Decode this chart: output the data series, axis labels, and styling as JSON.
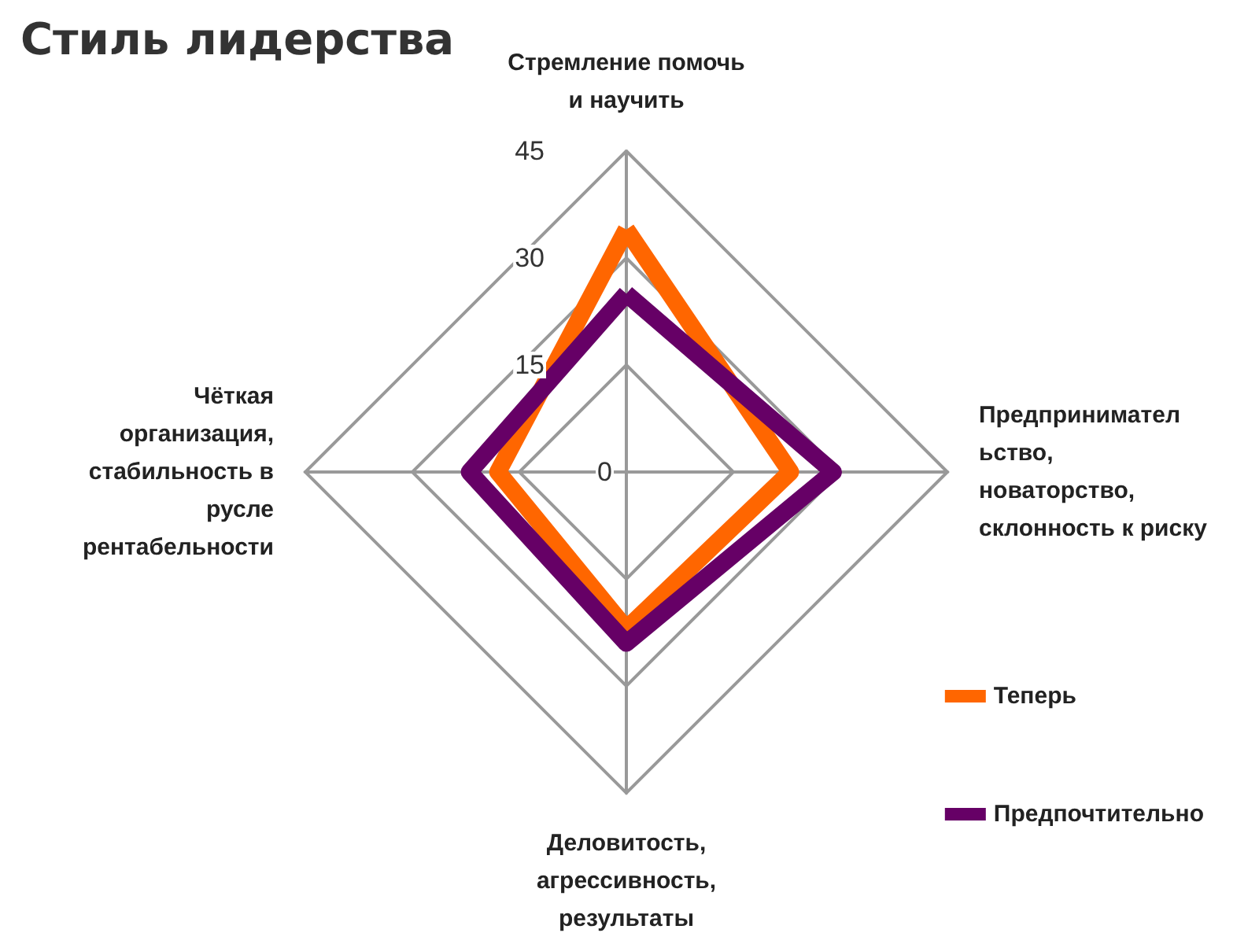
{
  "chart_data": {
    "type": "radar",
    "title": "Стиль лидерства",
    "categories": [
      "Стремление помочь и научить",
      "Предпринимательство, новаторство, склонность к риску",
      "Деловитость, агрессивность, результаты",
      "Чёткая организация, стабильность в русле рентабельности"
    ],
    "series": [
      {
        "name": "Теперь",
        "color": "#ff6600",
        "values": [
          34,
          23,
          22,
          18
        ]
      },
      {
        "name": "Предпочтительно",
        "color": "#660066",
        "values": [
          25,
          29,
          24,
          22
        ]
      }
    ],
    "ylim": [
      0,
      45
    ],
    "yticks": [
      0,
      15,
      30,
      45
    ],
    "legend": "bottom right",
    "marker": "none",
    "line_style": "solid"
  }
}
